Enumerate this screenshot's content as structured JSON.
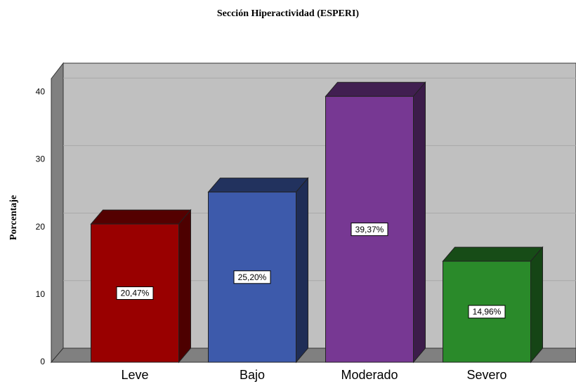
{
  "chart_data": {
    "type": "bar",
    "title": "Sección Hiperactividad (ESPERI)",
    "y_label": "Porcentaje",
    "categories": [
      "Leve",
      "Bajo",
      "Moderado",
      "Severo"
    ],
    "values": [
      20.47,
      25.2,
      39.37,
      14.96
    ],
    "value_labels": [
      "20,47%",
      "25,20%",
      "39,37%",
      "14,96%"
    ],
    "colors": [
      "#990000",
      "#3d5aab",
      "#773893",
      "#2a8a2a"
    ],
    "ylim": [
      0,
      42
    ],
    "yticks": [
      0,
      10,
      20,
      30,
      40
    ],
    "grid": true
  }
}
